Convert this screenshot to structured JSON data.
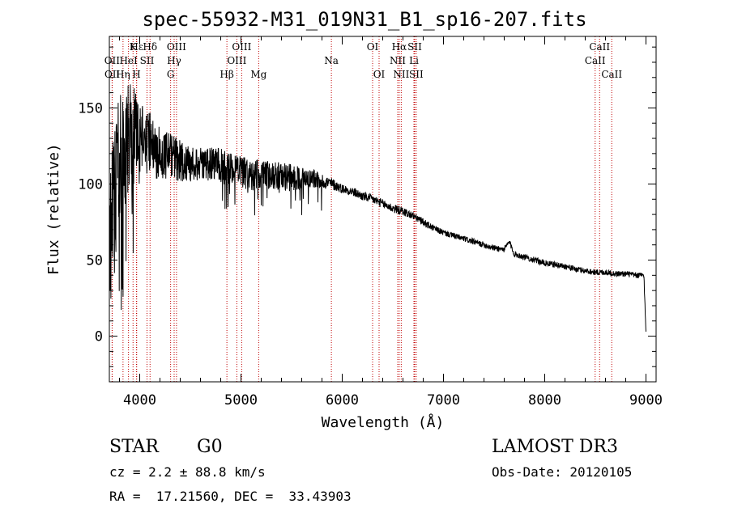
{
  "title": "spec-55932-M31_019N31_B1_sp16-207.fits",
  "info": {
    "class": "STAR",
    "subclass": "G0",
    "survey": "LAMOST DR3",
    "cz": "cz = 2.2 ± 88.8 km/s",
    "obs_date": "Obs-Date: 20120105",
    "radec": "RA =  17.21560, DEC =  33.43903"
  },
  "chart_data": {
    "type": "line",
    "title": "spec-55932-M31_019N31_B1_sp16-207.fits",
    "xlabel": "Wavelength (Å)",
    "ylabel": "Flux (relative)",
    "xlim": [
      3700,
      9100
    ],
    "ylim": [
      -30,
      197
    ],
    "xticks": [
      4000,
      5000,
      6000,
      7000,
      8000,
      9000
    ],
    "yticks": [
      0,
      50,
      100,
      150
    ],
    "grid": false,
    "series": [
      {
        "name": "flux",
        "continuum": [
          [
            3700,
            50
          ],
          [
            3720,
            75
          ],
          [
            3760,
            105
          ],
          [
            3800,
            118
          ],
          [
            3850,
            125
          ],
          [
            3900,
            128
          ],
          [
            3950,
            130
          ],
          [
            4000,
            130
          ],
          [
            4050,
            128
          ],
          [
            4100,
            126
          ],
          [
            4200,
            120
          ],
          [
            4300,
            118
          ],
          [
            4400,
            115
          ],
          [
            4500,
            113
          ],
          [
            4600,
            113
          ],
          [
            4700,
            113
          ],
          [
            4800,
            113
          ],
          [
            4900,
            110
          ],
          [
            5000,
            108
          ],
          [
            5100,
            107
          ],
          [
            5200,
            106
          ],
          [
            5300,
            106
          ],
          [
            5400,
            105
          ],
          [
            5500,
            104
          ],
          [
            5600,
            104
          ],
          [
            5700,
            104
          ],
          [
            5800,
            102
          ],
          [
            5900,
            100
          ],
          [
            6000,
            97
          ],
          [
            6100,
            95
          ],
          [
            6200,
            92
          ],
          [
            6300,
            90
          ],
          [
            6400,
            87
          ],
          [
            6500,
            84
          ],
          [
            6600,
            82
          ],
          [
            6700,
            79
          ],
          [
            6800,
            75
          ],
          [
            6900,
            71
          ],
          [
            7000,
            68
          ],
          [
            7100,
            66
          ],
          [
            7200,
            64
          ],
          [
            7300,
            62
          ],
          [
            7400,
            60
          ],
          [
            7500,
            58
          ],
          [
            7600,
            57
          ],
          [
            7650,
            62
          ],
          [
            7700,
            54
          ],
          [
            7800,
            52
          ],
          [
            7900,
            50
          ],
          [
            8000,
            48
          ],
          [
            8100,
            47
          ],
          [
            8200,
            46
          ],
          [
            8300,
            44
          ],
          [
            8400,
            43
          ],
          [
            8500,
            42
          ],
          [
            8600,
            42
          ],
          [
            8700,
            41
          ],
          [
            8800,
            41
          ],
          [
            8900,
            40
          ],
          [
            8980,
            40
          ],
          [
            8995,
            10
          ],
          [
            9000,
            2
          ]
        ],
        "noise": [
          [
            3700,
            45
          ],
          [
            3800,
            42
          ],
          [
            3900,
            38
          ],
          [
            4000,
            28
          ],
          [
            4100,
            22
          ],
          [
            4200,
            17
          ],
          [
            4500,
            12
          ],
          [
            5000,
            10
          ],
          [
            5500,
            9
          ],
          [
            5800,
            5
          ],
          [
            6000,
            3
          ],
          [
            6500,
            3
          ],
          [
            7000,
            2
          ],
          [
            9000,
            2
          ]
        ]
      }
    ],
    "lines": [
      {
        "label": "Hε",
        "wavelength": 3970,
        "row": 1
      },
      {
        "label": "K",
        "wavelength": 3934,
        "row": 1
      },
      {
        "label": "Hδ",
        "wavelength": 4102,
        "row": 1
      },
      {
        "label": "OIII",
        "wavelength": 4363,
        "row": 1
      },
      {
        "label": "OIII",
        "wavelength": 5007,
        "row": 1
      },
      {
        "label": "OI",
        "wavelength": 6300,
        "row": 1
      },
      {
        "label": "Hα",
        "wavelength": 6563,
        "row": 1
      },
      {
        "label": "SII",
        "wavelength": 6716,
        "row": 1
      },
      {
        "label": "CaII",
        "wavelength": 8542,
        "row": 1
      },
      {
        "label": "OII",
        "wavelength": 3727,
        "row": 2
      },
      {
        "label": "HeI",
        "wavelength": 3889,
        "row": 2
      },
      {
        "label": "SII",
        "wavelength": 4072,
        "row": 2
      },
      {
        "label": "Hγ",
        "wavelength": 4340,
        "row": 2
      },
      {
        "label": "OIII",
        "wavelength": 4959,
        "row": 2
      },
      {
        "label": "Na",
        "wavelength": 5893,
        "row": 2
      },
      {
        "label": "NII",
        "wavelength": 6548,
        "row": 2
      },
      {
        "label": "Li",
        "wavelength": 6708,
        "row": 2
      },
      {
        "label": "CaII",
        "wavelength": 8498,
        "row": 2
      },
      {
        "label": "OII",
        "wavelength": 3729,
        "row": 3
      },
      {
        "label": "Hη",
        "wavelength": 3835,
        "row": 3
      },
      {
        "label": "H",
        "wavelength": 3968,
        "row": 3
      },
      {
        "label": "G",
        "wavelength": 4305,
        "row": 3
      },
      {
        "label": "Hβ",
        "wavelength": 4861,
        "row": 3
      },
      {
        "label": "Mg",
        "wavelength": 5175,
        "row": 3
      },
      {
        "label": "OI",
        "wavelength": 6364,
        "row": 3
      },
      {
        "label": "NII",
        "wavelength": 6583,
        "row": 3
      },
      {
        "label": "SII",
        "wavelength": 6731,
        "row": 3
      },
      {
        "label": "CaII",
        "wavelength": 8662,
        "row": 3
      }
    ]
  }
}
